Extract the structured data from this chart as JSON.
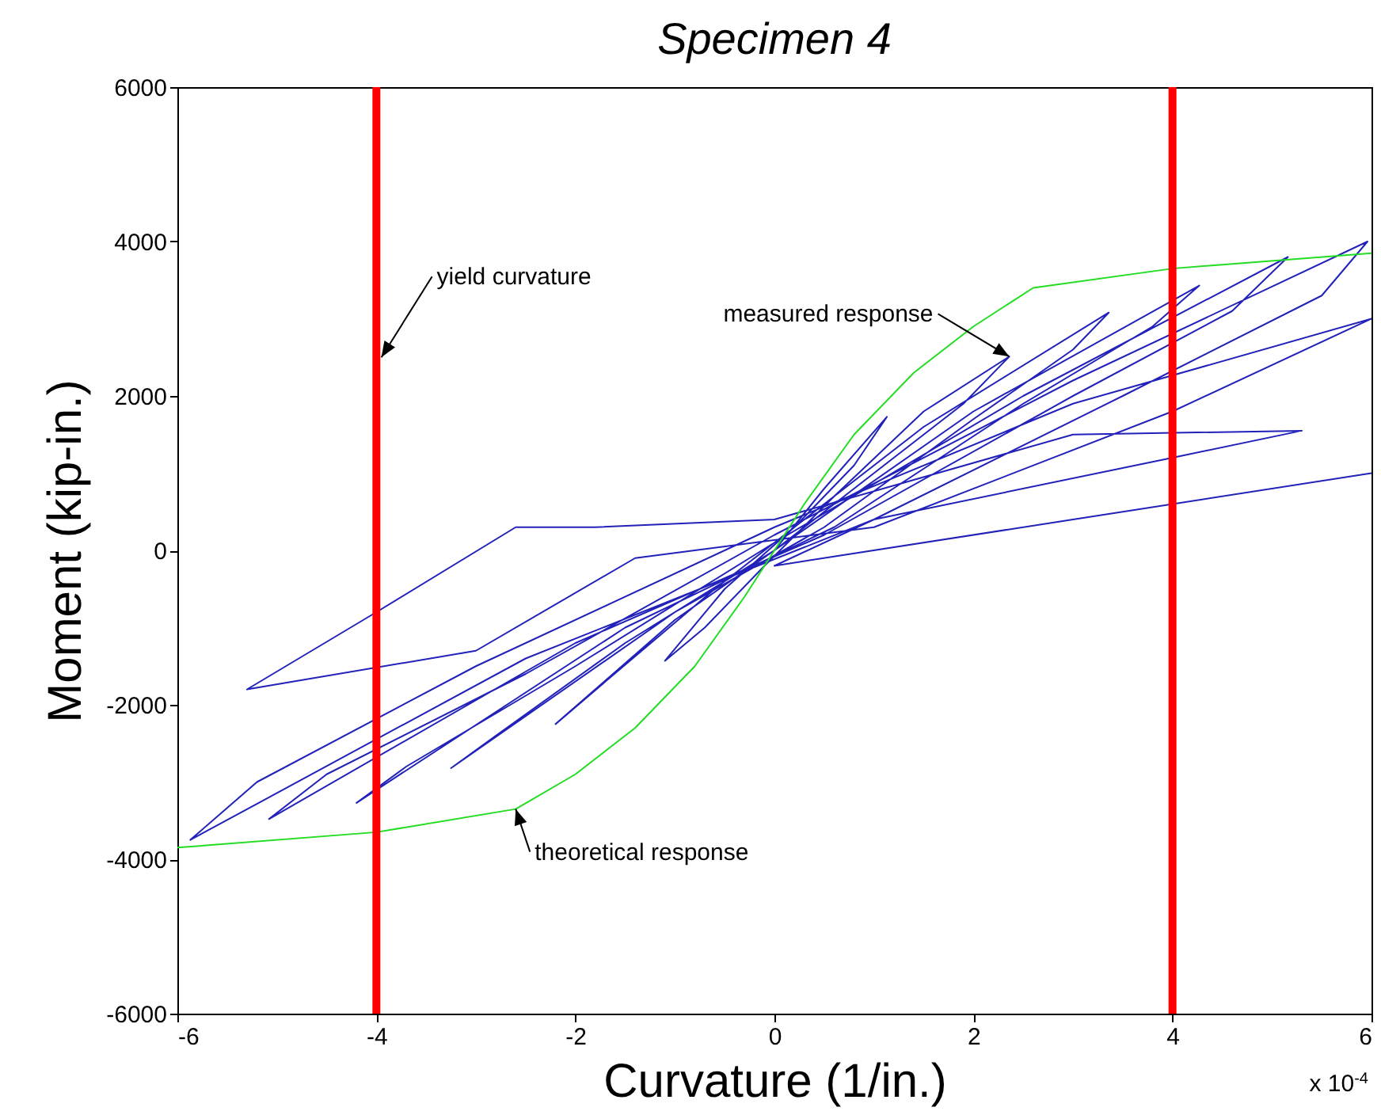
{
  "chart_data": {
    "type": "line",
    "title": "Specimen 4",
    "xlabel": "Curvature (1/in.)",
    "ylabel": "Moment (kip-in.)",
    "xlim": [
      -6,
      6
    ],
    "xticks": [
      -6,
      -4,
      -2,
      0,
      2,
      4,
      6
    ],
    "ylim": [
      -6000,
      6000
    ],
    "yticks": [
      -6000,
      -4000,
      -2000,
      0,
      2000,
      4000,
      6000
    ],
    "series": [
      {
        "color": "#2222bb",
        "x": [
          0,
          0.5,
          1.13,
          0.8,
          0.2,
          -0.5,
          -1.1,
          -0.7,
          -0.1,
          0.6,
          1.5,
          2.36,
          1.9,
          0.9,
          0,
          -1.0,
          -2.2,
          -1.7,
          -0.6,
          0.2,
          1.5,
          3.36,
          3.0,
          2.0,
          0.5,
          -1.0,
          -3.25,
          -2.8,
          -1.5,
          0,
          2,
          4.27,
          3.8,
          2.5,
          0.6,
          -1.5,
          -4.2,
          -3.7,
          -2.0,
          0,
          2.5,
          5.16,
          4.6,
          3,
          0.5,
          -2,
          -5.08,
          -4.5,
          -2.5,
          0,
          3,
          5.96,
          5.5,
          3.5,
          1,
          -2.5,
          -5.87,
          -5.2,
          -3,
          0,
          3,
          6,
          4,
          1,
          -1.4,
          -3,
          -5.3,
          -4,
          -2.6,
          -1.8,
          0,
          3,
          5.3,
          4,
          1,
          0,
          3,
          6
        ],
        "values": [
          0,
          800,
          1730,
          1100,
          300,
          -500,
          -1430,
          -1000,
          -200,
          700,
          1800,
          2510,
          1900,
          900,
          0,
          -900,
          -2250,
          -1700,
          -500,
          300,
          1600,
          3080,
          2600,
          1700,
          300,
          -800,
          -2820,
          -2400,
          -1200,
          0,
          1800,
          3430,
          2900,
          1900,
          300,
          -1000,
          -3270,
          -2800,
          -1500,
          100,
          2000,
          3800,
          3100,
          2000,
          200,
          -1200,
          -3480,
          -2900,
          -1600,
          200,
          2200,
          4000,
          3300,
          2000,
          400,
          -1400,
          -3750,
          -3000,
          -1500,
          300,
          1900,
          3000,
          1800,
          300,
          -100,
          -1300,
          -1800,
          -800,
          300,
          300,
          400,
          1500,
          1550,
          1200,
          400,
          -200,
          400,
          1000
        ]
      },
      {
        "color": "#22dd22",
        "x": [
          -6,
          -4,
          -2.6,
          -2,
          -1.4,
          -0.8,
          -0.3,
          0,
          0.3,
          0.8,
          1.4,
          2,
          2.6,
          4,
          6
        ],
        "values": [
          -3850,
          -3650,
          -3350,
          -2900,
          -2300,
          -1500,
          -600,
          0,
          600,
          1500,
          2300,
          2900,
          3400,
          3650,
          3850
        ]
      }
    ],
    "ref_lines": [
      {
        "axis": "x",
        "value": -4,
        "color": "#ff0000"
      },
      {
        "axis": "x",
        "value": 4,
        "color": "#ff0000"
      }
    ],
    "annotations": [
      {
        "text": "yield curvature",
        "x": -3.95,
        "y": 2500
      },
      {
        "text": "measured response",
        "x": 2.36,
        "y": 2510
      },
      {
        "text": "theoretical response",
        "x": -2.6,
        "y": -3350
      },
      "x 10$^{-4}$"
    ]
  }
}
